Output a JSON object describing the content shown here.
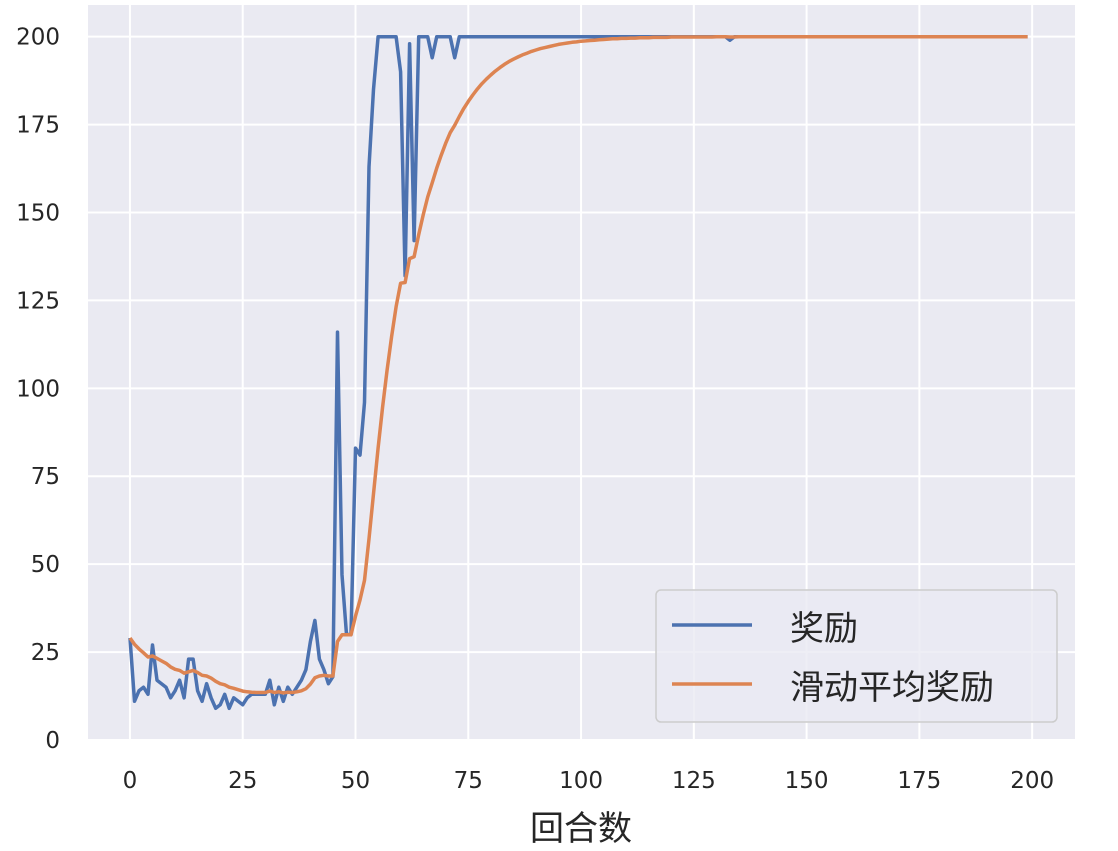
{
  "chart_data": {
    "type": "line",
    "title": "",
    "xlabel": "回合数",
    "ylabel": "",
    "xlim": [
      -9.3,
      209.5
    ],
    "ylim": [
      0,
      209
    ],
    "xticks": [
      0,
      25,
      50,
      75,
      100,
      125,
      150,
      175,
      200
    ],
    "yticks": [
      0,
      25,
      50,
      75,
      100,
      125,
      150,
      175,
      200
    ],
    "grid": true,
    "legend_position": "lower-right",
    "background_color": "#EAEAF2",
    "series": [
      {
        "name": "奖励",
        "color": "#4C72B0",
        "values": [
          29,
          11,
          14,
          15,
          13,
          27,
          17,
          16,
          15,
          12,
          14,
          17,
          12,
          23,
          23,
          14,
          11,
          16,
          12,
          9,
          10,
          13,
          9,
          12,
          11,
          10,
          12,
          13,
          13,
          13,
          13,
          17,
          10,
          15,
          11,
          15,
          13,
          15,
          17,
          20,
          28,
          34,
          23,
          20,
          16,
          18,
          116,
          47,
          30,
          30,
          83,
          81,
          96,
          163,
          185,
          200,
          200,
          200,
          200,
          200,
          190,
          132,
          198,
          142,
          200,
          200,
          200,
          194,
          200,
          200,
          200,
          200,
          194,
          200,
          200,
          200,
          200,
          200,
          200,
          200,
          200,
          200,
          200,
          200,
          200,
          200,
          200,
          200,
          200,
          200,
          200,
          200,
          200,
          200,
          200,
          200,
          200,
          200,
          200,
          200,
          200,
          200,
          200,
          200,
          200,
          200,
          200,
          200,
          200,
          200,
          200,
          200,
          200,
          200,
          200,
          200,
          200,
          200,
          200,
          200,
          200,
          200,
          200,
          200,
          200,
          200,
          200,
          200,
          200,
          200,
          200,
          200,
          200,
          199,
          200,
          200,
          200,
          200,
          200,
          200,
          200,
          200,
          200,
          200,
          200,
          200,
          200,
          200,
          200,
          200,
          200,
          200,
          200,
          200,
          200,
          200,
          200,
          200,
          200,
          200,
          200,
          200,
          200,
          200,
          200,
          200,
          200,
          200,
          200,
          200,
          200,
          200,
          200,
          200,
          200,
          200,
          200,
          200,
          200,
          200,
          200,
          200,
          200,
          200,
          200,
          200,
          200,
          200,
          200,
          200,
          200,
          200,
          200,
          200,
          200,
          200,
          200,
          200,
          200,
          200
        ]
      },
      {
        "name": "滑动平均奖励",
        "color": "#DD8452",
        "values": [
          29,
          27.2,
          25.9,
          24.8,
          23.6,
          23.9,
          23.2,
          22.5,
          21.8,
          20.8,
          20.1,
          19.8,
          19.0,
          19.4,
          19.8,
          19.2,
          18.4,
          18.2,
          17.6,
          16.7,
          16.0,
          15.7,
          15.0,
          14.7,
          14.3,
          13.9,
          13.7,
          13.6,
          13.5,
          13.5,
          13.5,
          13.9,
          13.5,
          13.7,
          13.4,
          13.6,
          13.5,
          13.7,
          14.0,
          14.6,
          15.9,
          17.7,
          18.2,
          18.4,
          18.2,
          18.2,
          28.0,
          29.9,
          29.9,
          29.9,
          35.2,
          39.8,
          45.4,
          57.2,
          70.0,
          83.0,
          94.7,
          105.2,
          114.7,
          123.2,
          129.9,
          130.1,
          136.9,
          137.4,
          143.7,
          149.3,
          154.4,
          158.4,
          162.6,
          166.3,
          169.7,
          172.7,
          174.8,
          177.3,
          179.6,
          181.6,
          183.4,
          185.1,
          186.6,
          187.9,
          189.1,
          190.2,
          191.2,
          192.1,
          192.9,
          193.6,
          194.2,
          194.8,
          195.3,
          195.8,
          196.2,
          196.6,
          196.9,
          197.2,
          197.5,
          197.8,
          198.0,
          198.2,
          198.4,
          198.5,
          198.7,
          198.8,
          198.9,
          199.0,
          199.1,
          199.2,
          199.3,
          199.4,
          199.4,
          199.5,
          199.5,
          199.6,
          199.6,
          199.7,
          199.7,
          199.7,
          199.8,
          199.8,
          199.8,
          199.8,
          199.9,
          199.9,
          199.9,
          199.9,
          199.9,
          199.9,
          199.9,
          199.9,
          199.9,
          199.9,
          200,
          200,
          200,
          199.9,
          199.9,
          200,
          200,
          200,
          200,
          200,
          200,
          200,
          200,
          200,
          200,
          200,
          200,
          200,
          200,
          200,
          200,
          200,
          200,
          200,
          200,
          200,
          200,
          200,
          200,
          200,
          200,
          200,
          200,
          200,
          200,
          200,
          200,
          200,
          200,
          200,
          200,
          200,
          200,
          200,
          200,
          200,
          200,
          200,
          200,
          200,
          200,
          200,
          200,
          200,
          200,
          200,
          200,
          200,
          200,
          200,
          200,
          200,
          200,
          200,
          200,
          200,
          200,
          200,
          200,
          200
        ]
      }
    ]
  }
}
